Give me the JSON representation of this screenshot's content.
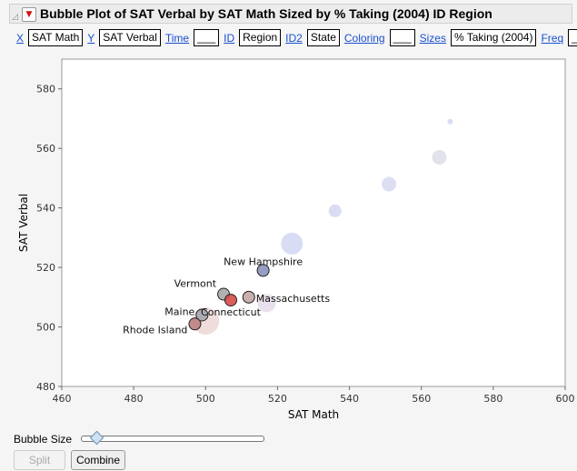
{
  "header": {
    "title": "Bubble Plot of SAT Verbal by SAT Math Sized by % Taking (2004) ID Region"
  },
  "roles": [
    {
      "label": "X",
      "value": "SAT Math"
    },
    {
      "label": "Y",
      "value": "SAT Verbal"
    },
    {
      "label": "Time",
      "value": "___"
    },
    {
      "label": "ID",
      "value": "Region"
    },
    {
      "label": "ID2",
      "value": "State"
    },
    {
      "label": "Coloring",
      "value": "___"
    },
    {
      "label": "Sizes",
      "value": "% Taking (2004)"
    },
    {
      "label": "Freq",
      "value": "___"
    }
  ],
  "chart_data": {
    "type": "scatter",
    "xlabel": "SAT Math",
    "ylabel": "SAT Verbal",
    "xlim": [
      460,
      600
    ],
    "ylim": [
      480,
      590
    ],
    "xticks": [
      460,
      480,
      500,
      520,
      540,
      560,
      580,
      600
    ],
    "yticks": [
      480,
      500,
      520,
      540,
      560,
      580
    ],
    "grid": false,
    "points": [
      {
        "x": 568,
        "y": 569,
        "size": 3,
        "color": "#d8dcf4",
        "label": ""
      },
      {
        "x": 565,
        "y": 557,
        "size": 8,
        "color": "#e2e2ea",
        "label": ""
      },
      {
        "x": 551,
        "y": 548,
        "size": 8,
        "color": "#dcdff4",
        "label": ""
      },
      {
        "x": 536,
        "y": 539,
        "size": 7,
        "color": "#d8dcf4",
        "label": ""
      },
      {
        "x": 524,
        "y": 528,
        "size": 12,
        "color": "#d8dcf4",
        "label": ""
      },
      {
        "x": 517,
        "y": 508,
        "size": 10,
        "color": "#e8e0ec",
        "label": ""
      },
      {
        "x": 500,
        "y": 502,
        "size": 15,
        "color": "#f1dcdc",
        "label": ""
      },
      {
        "x": 516,
        "y": 519,
        "size": 6,
        "color": "#8c93bd",
        "label": "New Hampshire"
      },
      {
        "x": 505,
        "y": 511,
        "size": 6,
        "color": "#a8a8ac",
        "label": "Vermont"
      },
      {
        "x": 512,
        "y": 510,
        "size": 6,
        "color": "#c4a6a6",
        "label": "Massachusetts"
      },
      {
        "x": 507,
        "y": 509,
        "size": 6,
        "color": "#d84a4a",
        "label": "Connecticut"
      },
      {
        "x": 499,
        "y": 504,
        "size": 6,
        "color": "#a4a6b0",
        "label": "Maine"
      },
      {
        "x": 497,
        "y": 501,
        "size": 6,
        "color": "#bb8080",
        "label": "Rhode Island"
      }
    ]
  },
  "controls": {
    "bubble_size_label": "Bubble Size",
    "bubble_size": 0.08,
    "split_label": "Split",
    "combine_label": "Combine"
  }
}
